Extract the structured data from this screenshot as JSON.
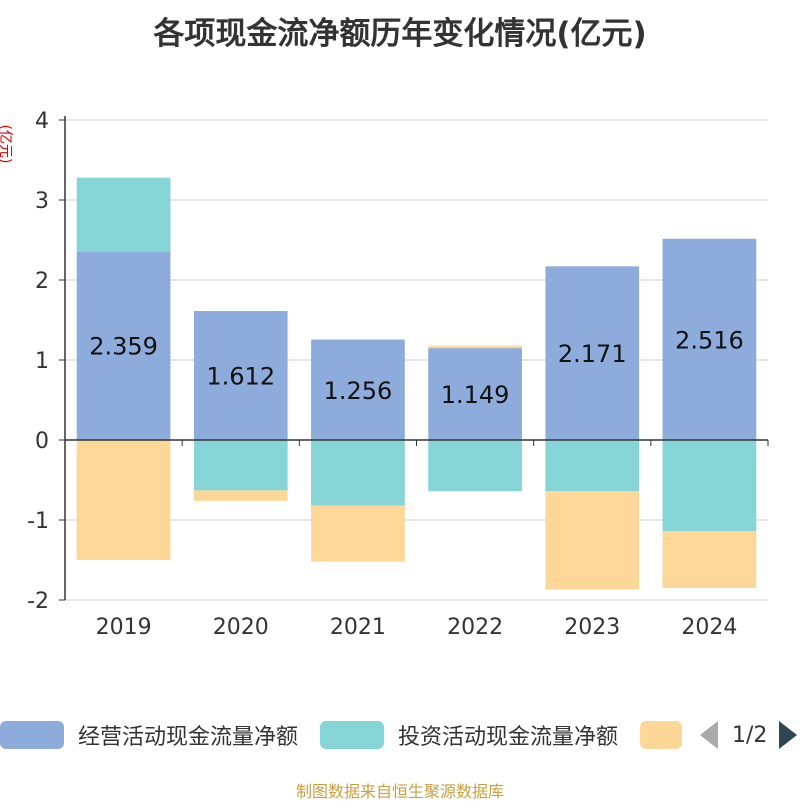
{
  "title": "各项现金流净额历年变化情况(亿元)",
  "unit_label": "(亿元)",
  "source": "制图数据来自恒生聚源数据库",
  "pager": {
    "text": "1/2"
  },
  "colors": {
    "operating": "#8eacdb",
    "investing": "#85d4d6",
    "financing": "#fdd797",
    "grid": "#cccccc",
    "axis": "#333333"
  },
  "legend": [
    {
      "label": "经营活动现金流量净额",
      "color": "#8eacdb"
    },
    {
      "label": "投资活动现金流量净额",
      "color": "#85d4d6"
    },
    {
      "label": "",
      "color": "#fdd797"
    }
  ],
  "chart_data": {
    "type": "bar",
    "stacked": true,
    "title": "各项现金流净额历年变化情况(亿元)",
    "ylabel": "(亿元)",
    "ylim": [
      -2,
      4
    ],
    "yticks": [
      4,
      3,
      2,
      1,
      0,
      -1,
      -2
    ],
    "categories": [
      "2019",
      "2020",
      "2021",
      "2022",
      "2023",
      "2024"
    ],
    "series": [
      {
        "name": "经营活动现金流量净额",
        "color": "#8eacdb",
        "values": [
          2.359,
          1.612,
          1.256,
          1.149,
          2.171,
          2.516
        ],
        "labels": [
          "2.359",
          "1.612",
          "1.256",
          "1.149",
          "2.171",
          "2.516"
        ]
      },
      {
        "name": "投资活动现金流量净额",
        "color": "#85d4d6",
        "values": [
          0.92,
          -0.63,
          -0.82,
          -0.64,
          -0.64,
          -1.14
        ]
      },
      {
        "name": "",
        "color": "#fdd797",
        "values": [
          -1.5,
          -0.13,
          -0.7,
          0.03,
          -1.23,
          -0.71
        ]
      }
    ]
  }
}
